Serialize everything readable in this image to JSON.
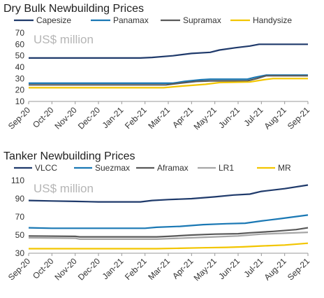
{
  "chart_data": [
    {
      "type": "line",
      "title": "Dry Bulk Newbuilding Prices",
      "unit_label": "US$ million",
      "x_labels": [
        "Sep-20",
        "Oct-20",
        "Nov-20",
        "Dec-20",
        "Jan-21",
        "Feb-21",
        "Mar-21",
        "Apr-21",
        "May-21",
        "Jun-21",
        "Jul-21",
        "Aug-21",
        "Sep-21"
      ],
      "ylim": [
        10,
        70
      ],
      "yticks": [
        10,
        20,
        30,
        40,
        50,
        60,
        70
      ],
      "grid": false,
      "legend_position": "top",
      "series": [
        {
          "name": "Capesize",
          "color": "#1f3a6b",
          "points": [
            [
              0,
              48
            ],
            [
              4.8,
              48
            ],
            [
              5.3,
              48.5
            ],
            [
              6.2,
              50
            ],
            [
              7,
              52
            ],
            [
              7.8,
              53
            ],
            [
              8.2,
              55
            ],
            [
              8.9,
              57
            ],
            [
              9.5,
              58.5
            ],
            [
              9.9,
              60
            ],
            [
              12,
              60
            ]
          ]
        },
        {
          "name": "Panamax",
          "color": "#1a78b4",
          "points": [
            [
              0,
              26
            ],
            [
              6.2,
              26
            ],
            [
              6.7,
              27.5
            ],
            [
              7.4,
              29
            ],
            [
              7.8,
              29.5
            ],
            [
              9.4,
              29.5
            ],
            [
              9.7,
              31
            ],
            [
              10.2,
              33
            ],
            [
              12,
              33
            ]
          ]
        },
        {
          "name": "Supramax",
          "color": "#595959",
          "points": [
            [
              0,
              24.5
            ],
            [
              5.9,
              24.5
            ],
            [
              6.5,
              26
            ],
            [
              7.2,
              27.5
            ],
            [
              7.8,
              28
            ],
            [
              9.4,
              28
            ],
            [
              9.8,
              30
            ],
            [
              10.2,
              32.5
            ],
            [
              12,
              32.5
            ]
          ]
        },
        {
          "name": "Handysize",
          "color": "#f2c500",
          "points": [
            [
              0,
              22
            ],
            [
              5.8,
              22
            ],
            [
              6.6,
              23.5
            ],
            [
              7.6,
              25
            ],
            [
              8.2,
              26.5
            ],
            [
              9.5,
              27
            ],
            [
              10.1,
              29
            ],
            [
              10.5,
              30
            ],
            [
              12,
              30
            ]
          ]
        }
      ]
    },
    {
      "type": "line",
      "title": "Tanker Newbuilding Prices",
      "unit_label": "US$ million",
      "x_labels": [
        "Sep-20",
        "Oct-20",
        "Nov-20",
        "Dec-20",
        "Jan-21",
        "Feb-21",
        "Mar-21",
        "Apr-21",
        "May-21",
        "Jun-21",
        "Jul-21",
        "Aug-21",
        "Sep-21"
      ],
      "ylim": [
        30,
        110
      ],
      "yticks": [
        30,
        50,
        70,
        90,
        110
      ],
      "grid": false,
      "legend_position": "top",
      "series": [
        {
          "name": "VLCC",
          "color": "#1f3a6b",
          "points": [
            [
              0,
              88
            ],
            [
              1,
              87.5
            ],
            [
              2,
              87
            ],
            [
              3,
              86.5
            ],
            [
              4,
              86.5
            ],
            [
              4.8,
              86.5
            ],
            [
              5.3,
              88
            ],
            [
              6,
              89
            ],
            [
              7,
              90
            ],
            [
              8,
              92
            ],
            [
              8.8,
              94
            ],
            [
              9.5,
              95
            ],
            [
              10,
              98
            ],
            [
              11,
              101
            ],
            [
              12,
              105
            ]
          ]
        },
        {
          "name": "Suezmax",
          "color": "#1a78b4",
          "points": [
            [
              0,
              58
            ],
            [
              1,
              57.5
            ],
            [
              2,
              57.5
            ],
            [
              3,
              57.5
            ],
            [
              4,
              57.5
            ],
            [
              5,
              57.5
            ],
            [
              5.5,
              58.5
            ],
            [
              6.5,
              59.5
            ],
            [
              7.5,
              61.5
            ],
            [
              8.5,
              62.5
            ],
            [
              9.3,
              63
            ],
            [
              10,
              65.5
            ],
            [
              10.8,
              68
            ],
            [
              12,
              72
            ]
          ]
        },
        {
          "name": "Aframax",
          "color": "#595959",
          "points": [
            [
              0,
              49
            ],
            [
              2,
              48.5
            ],
            [
              2.2,
              48
            ],
            [
              4,
              48
            ],
            [
              5.5,
              48
            ],
            [
              6,
              48.5
            ],
            [
              7,
              50
            ],
            [
              8,
              51
            ],
            [
              9,
              51.5
            ],
            [
              9.5,
              52.5
            ],
            [
              10.5,
              54
            ],
            [
              11.5,
              56
            ],
            [
              12,
              58
            ]
          ]
        },
        {
          "name": "LR1",
          "color": "#a6a6a6",
          "points": [
            [
              0,
              47
            ],
            [
              2,
              46.5
            ],
            [
              2.2,
              45.5
            ],
            [
              4,
              45.5
            ],
            [
              5.5,
              45.5
            ],
            [
              6,
              46
            ],
            [
              7,
              47
            ],
            [
              8,
              48
            ],
            [
              9,
              49
            ],
            [
              10,
              51
            ],
            [
              11,
              52
            ],
            [
              12,
              53
            ]
          ]
        },
        {
          "name": "MR",
          "color": "#f2c500",
          "points": [
            [
              0,
              35
            ],
            [
              2,
              35
            ],
            [
              4,
              35
            ],
            [
              5.5,
              35
            ],
            [
              6.5,
              35.5
            ],
            [
              7.5,
              36
            ],
            [
              8.5,
              36.5
            ],
            [
              9.2,
              37
            ],
            [
              10,
              38
            ],
            [
              11,
              39
            ],
            [
              12,
              41
            ]
          ]
        }
      ]
    }
  ]
}
